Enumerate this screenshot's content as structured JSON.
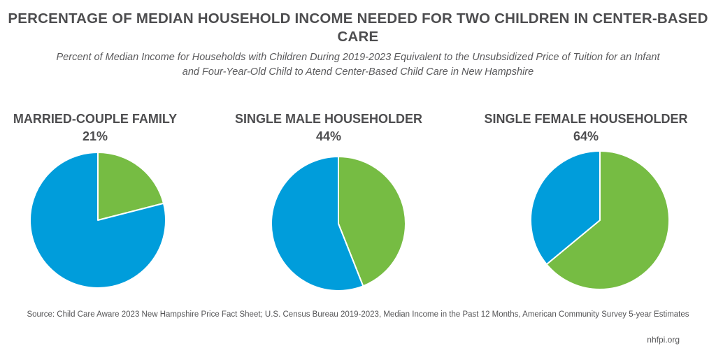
{
  "title": "PERCENTAGE OF MEDIAN HOUSEHOLD INCOME NEEDED FOR TWO CHILDREN IN CENTER-BASED CARE",
  "subtitle": "Percent of Median Income for Households with Children During 2019-2023 Equivalent to the Unsubsidized Price of Tuition for an Infant and Four-Year-Old Child to Atend Center-Based Child Care in New Hampshire",
  "source": "Source: Child Care Aware 2023 New Hampshire Price Fact Sheet; U.S. Census Bureau 2019-2023, Median Income in the Past 12 Months, American Community Survey 5-year Estimates",
  "credit": "nhfpi.org",
  "colors": {
    "share": "#76bc43",
    "remainder": "#009ddb"
  },
  "chart_data": [
    {
      "type": "pie",
      "title": "MARRIED-COUPLE FAMILY",
      "value_label": "21%",
      "values": [
        21,
        79
      ]
    },
    {
      "type": "pie",
      "title": "SINGLE MALE HOUSEHOLDER",
      "value_label": "44%",
      "values": [
        44,
        56
      ]
    },
    {
      "type": "pie",
      "title": "SINGLE FEMALE HOUSEHOLDER",
      "value_label": "64%",
      "values": [
        64,
        36
      ]
    }
  ]
}
